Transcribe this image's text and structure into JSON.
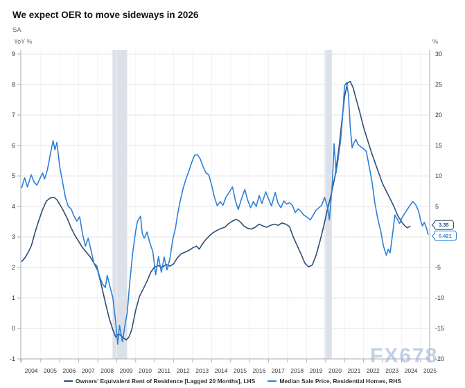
{
  "header": {
    "title": "We expect OER to move sideways in 2026",
    "subtitle": "SA"
  },
  "watermark": {
    "text": "FX678"
  },
  "colors": {
    "grid": "#e6e6e6",
    "vgrid": "#f0f2f5",
    "axis": "#a6adb5",
    "band": "#dce0e9",
    "tick_text": "#333333",
    "muted_text": "#666666",
    "title_text": "#111111",
    "oer_line": "#2d4d76",
    "median_sale_price_line": "#2e7fd8"
  },
  "chart_data": {
    "type": "line",
    "title": "We expect OER to move sideways in 2026",
    "subtitle": "SA",
    "legend_position": "bottom",
    "grid": {
      "horizontal": true,
      "vertical": "faint"
    },
    "left_axis": {
      "unit_label": "YoY %",
      "min": -1,
      "max": 9,
      "ticks": [
        9,
        8,
        7,
        6,
        5,
        4,
        3,
        2,
        1,
        0,
        -1
      ]
    },
    "right_axis": {
      "unit_label": "%",
      "min": -20,
      "max": 30,
      "ticks": [
        30,
        25,
        20,
        15,
        10,
        5,
        -5,
        -10,
        -15,
        -20
      ]
    },
    "x_axis": {
      "tick_years": [
        2004,
        2005,
        2006,
        2007,
        2008,
        2009,
        2010,
        2011,
        2012,
        2013,
        2014,
        2015,
        2016,
        2017,
        2018,
        2019,
        2020,
        2021,
        2022,
        2023,
        2024,
        2025
      ],
      "start": 2003.95,
      "end": 2025.48
    },
    "recession_bands": [
      {
        "from": 2008.78,
        "to": 2009.55
      },
      {
        "from": 2019.95,
        "to": 2020.33
      }
    ],
    "series": [
      {
        "name": "Owners' Equivalent Rent of Residence [Lagged 20 Months], LHS",
        "short_name": "oer",
        "axis": "left",
        "color": "#2d4d76",
        "last_value_label": "3.35",
        "points": [
          [
            2004.0,
            2.2
          ],
          [
            2004.15,
            2.3
          ],
          [
            2004.3,
            2.45
          ],
          [
            2004.5,
            2.7
          ],
          [
            2004.7,
            3.15
          ],
          [
            2004.9,
            3.55
          ],
          [
            2005.1,
            3.9
          ],
          [
            2005.3,
            4.18
          ],
          [
            2005.5,
            4.28
          ],
          [
            2005.7,
            4.3
          ],
          [
            2005.85,
            4.22
          ],
          [
            2006.0,
            4.07
          ],
          [
            2006.2,
            3.85
          ],
          [
            2006.4,
            3.6
          ],
          [
            2006.6,
            3.3
          ],
          [
            2006.8,
            3.05
          ],
          [
            2007.0,
            2.85
          ],
          [
            2007.2,
            2.65
          ],
          [
            2007.4,
            2.5
          ],
          [
            2007.6,
            2.35
          ],
          [
            2007.8,
            2.15
          ],
          [
            2008.0,
            1.9
          ],
          [
            2008.2,
            1.4
          ],
          [
            2008.4,
            0.85
          ],
          [
            2008.6,
            0.35
          ],
          [
            2008.8,
            -0.05
          ],
          [
            2008.95,
            -0.28
          ],
          [
            2009.1,
            -0.18
          ],
          [
            2009.3,
            -0.28
          ],
          [
            2009.5,
            -0.38
          ],
          [
            2009.65,
            -0.28
          ],
          [
            2009.8,
            -0.02
          ],
          [
            2010.0,
            0.6
          ],
          [
            2010.2,
            1.05
          ],
          [
            2010.4,
            1.3
          ],
          [
            2010.6,
            1.55
          ],
          [
            2010.8,
            1.85
          ],
          [
            2011.0,
            2.02
          ],
          [
            2011.2,
            2.06
          ],
          [
            2011.4,
            2.0
          ],
          [
            2011.6,
            2.1
          ],
          [
            2011.8,
            2.04
          ],
          [
            2012.0,
            2.12
          ],
          [
            2012.2,
            2.32
          ],
          [
            2012.4,
            2.45
          ],
          [
            2012.6,
            2.5
          ],
          [
            2012.8,
            2.56
          ],
          [
            2013.0,
            2.64
          ],
          [
            2013.2,
            2.7
          ],
          [
            2013.35,
            2.6
          ],
          [
            2013.5,
            2.76
          ],
          [
            2013.7,
            2.92
          ],
          [
            2013.9,
            3.05
          ],
          [
            2014.1,
            3.15
          ],
          [
            2014.3,
            3.22
          ],
          [
            2014.5,
            3.28
          ],
          [
            2014.7,
            3.32
          ],
          [
            2014.9,
            3.44
          ],
          [
            2015.1,
            3.52
          ],
          [
            2015.3,
            3.58
          ],
          [
            2015.5,
            3.5
          ],
          [
            2015.7,
            3.36
          ],
          [
            2015.9,
            3.28
          ],
          [
            2016.1,
            3.26
          ],
          [
            2016.3,
            3.32
          ],
          [
            2016.5,
            3.42
          ],
          [
            2016.7,
            3.36
          ],
          [
            2016.9,
            3.32
          ],
          [
            2017.1,
            3.38
          ],
          [
            2017.3,
            3.42
          ],
          [
            2017.5,
            3.38
          ],
          [
            2017.7,
            3.46
          ],
          [
            2017.9,
            3.42
          ],
          [
            2018.1,
            3.34
          ],
          [
            2018.3,
            3.0
          ],
          [
            2018.5,
            2.72
          ],
          [
            2018.7,
            2.45
          ],
          [
            2018.9,
            2.15
          ],
          [
            2019.1,
            2.02
          ],
          [
            2019.3,
            2.08
          ],
          [
            2019.5,
            2.4
          ],
          [
            2019.7,
            2.85
          ],
          [
            2019.9,
            3.35
          ],
          [
            2020.1,
            3.9
          ],
          [
            2020.3,
            4.4
          ],
          [
            2020.5,
            5.0
          ],
          [
            2020.7,
            5.9
          ],
          [
            2020.85,
            6.75
          ],
          [
            2021.0,
            7.6
          ],
          [
            2021.15,
            8.05
          ],
          [
            2021.3,
            8.1
          ],
          [
            2021.45,
            7.9
          ],
          [
            2021.6,
            7.55
          ],
          [
            2021.8,
            7.1
          ],
          [
            2022.0,
            6.6
          ],
          [
            2022.2,
            6.2
          ],
          [
            2022.4,
            5.8
          ],
          [
            2022.6,
            5.45
          ],
          [
            2022.8,
            5.1
          ],
          [
            2023.0,
            4.75
          ],
          [
            2023.2,
            4.5
          ],
          [
            2023.4,
            4.25
          ],
          [
            2023.6,
            4.0
          ],
          [
            2023.8,
            3.7
          ],
          [
            2024.0,
            3.5
          ],
          [
            2024.15,
            3.38
          ],
          [
            2024.3,
            3.3
          ],
          [
            2024.45,
            3.35
          ]
        ]
      },
      {
        "name": "Median Sale Price, Residential Homes, RHS",
        "short_name": "median-sale-price",
        "axis": "right",
        "color": "#2e7fd8",
        "last_value_label": "0.421",
        "points": [
          [
            2004.0,
            8.1
          ],
          [
            2004.15,
            9.7
          ],
          [
            2004.3,
            8.2
          ],
          [
            2004.5,
            10.2
          ],
          [
            2004.65,
            9.0
          ],
          [
            2004.8,
            8.5
          ],
          [
            2005.0,
            9.9
          ],
          [
            2005.1,
            10.5
          ],
          [
            2005.2,
            9.5
          ],
          [
            2005.35,
            11.0
          ],
          [
            2005.5,
            13.5
          ],
          [
            2005.65,
            15.8
          ],
          [
            2005.75,
            14.3
          ],
          [
            2005.85,
            15.5
          ],
          [
            2006.0,
            11.5
          ],
          [
            2006.15,
            9.0
          ],
          [
            2006.3,
            6.5
          ],
          [
            2006.45,
            5.0
          ],
          [
            2006.6,
            4.6
          ],
          [
            2006.75,
            3.4
          ],
          [
            2006.9,
            2.6
          ],
          [
            2007.05,
            3.3
          ],
          [
            2007.2,
            0.5
          ],
          [
            2007.35,
            -1.5
          ],
          [
            2007.5,
            -0.2
          ],
          [
            2007.65,
            -2.2
          ],
          [
            2007.8,
            -4.3
          ],
          [
            2007.95,
            -4.7
          ],
          [
            2008.1,
            -6.5
          ],
          [
            2008.25,
            -7.7
          ],
          [
            2008.4,
            -8.3
          ],
          [
            2008.5,
            -6.3
          ],
          [
            2008.65,
            -8.2
          ],
          [
            2008.8,
            -10.0
          ],
          [
            2008.95,
            -14.0
          ],
          [
            2009.05,
            -17.6
          ],
          [
            2009.15,
            -14.5
          ],
          [
            2009.3,
            -17.2
          ],
          [
            2009.45,
            -14.2
          ],
          [
            2009.55,
            -12.5
          ],
          [
            2009.7,
            -7.0
          ],
          [
            2009.85,
            -2.4
          ],
          [
            2010.0,
            1.0
          ],
          [
            2010.1,
            2.6
          ],
          [
            2010.25,
            3.4
          ],
          [
            2010.35,
            0.5
          ],
          [
            2010.45,
            -0.2
          ],
          [
            2010.6,
            0.8
          ],
          [
            2010.75,
            -1.0
          ],
          [
            2010.9,
            -2.4
          ],
          [
            2011.05,
            -6.2
          ],
          [
            2011.2,
            -3.2
          ],
          [
            2011.35,
            -5.8
          ],
          [
            2011.5,
            -3.3
          ],
          [
            2011.65,
            -5.4
          ],
          [
            2011.8,
            -3.6
          ],
          [
            2011.95,
            -0.5
          ],
          [
            2012.1,
            1.5
          ],
          [
            2012.2,
            3.6
          ],
          [
            2012.35,
            6.0
          ],
          [
            2012.5,
            8.0
          ],
          [
            2012.65,
            9.5
          ],
          [
            2012.8,
            10.8
          ],
          [
            2012.95,
            12.2
          ],
          [
            2013.1,
            13.4
          ],
          [
            2013.25,
            13.5
          ],
          [
            2013.4,
            12.8
          ],
          [
            2013.55,
            11.5
          ],
          [
            2013.7,
            10.5
          ],
          [
            2013.85,
            10.2
          ],
          [
            2014.0,
            8.5
          ],
          [
            2014.15,
            6.5
          ],
          [
            2014.3,
            5.1
          ],
          [
            2014.45,
            5.8
          ],
          [
            2014.6,
            5.2
          ],
          [
            2014.75,
            6.5
          ],
          [
            2014.9,
            7.2
          ],
          [
            2015.1,
            8.2
          ],
          [
            2015.25,
            6.0
          ],
          [
            2015.4,
            4.5
          ],
          [
            2015.6,
            6.5
          ],
          [
            2015.75,
            7.8
          ],
          [
            2015.9,
            6.0
          ],
          [
            2016.05,
            4.8
          ],
          [
            2016.2,
            5.8
          ],
          [
            2016.35,
            5.0
          ],
          [
            2016.5,
            6.8
          ],
          [
            2016.65,
            5.5
          ],
          [
            2016.85,
            7.4
          ],
          [
            2017.0,
            6.2
          ],
          [
            2017.15,
            5.1
          ],
          [
            2017.35,
            7.3
          ],
          [
            2017.5,
            5.5
          ],
          [
            2017.65,
            4.8
          ],
          [
            2017.8,
            5.9
          ],
          [
            2017.95,
            5.4
          ],
          [
            2018.1,
            5.6
          ],
          [
            2018.25,
            5.2
          ],
          [
            2018.4,
            4.0
          ],
          [
            2018.55,
            4.6
          ],
          [
            2018.7,
            4.2
          ],
          [
            2018.85,
            3.6
          ],
          [
            2019.0,
            3.3
          ],
          [
            2019.2,
            2.8
          ],
          [
            2019.35,
            3.6
          ],
          [
            2019.5,
            4.4
          ],
          [
            2019.65,
            4.8
          ],
          [
            2019.8,
            5.2
          ],
          [
            2019.95,
            6.5
          ],
          [
            2020.1,
            5.0
          ],
          [
            2020.2,
            2.8
          ],
          [
            2020.35,
            8.5
          ],
          [
            2020.45,
            15.3
          ],
          [
            2020.55,
            10.5
          ],
          [
            2020.65,
            12.5
          ],
          [
            2020.8,
            16.0
          ],
          [
            2020.9,
            20.0
          ],
          [
            2021.0,
            24.8
          ],
          [
            2021.1,
            25.3
          ],
          [
            2021.2,
            23.5
          ],
          [
            2021.3,
            18.0
          ],
          [
            2021.4,
            14.6
          ],
          [
            2021.5,
            15.5
          ],
          [
            2021.6,
            16.0
          ],
          [
            2021.7,
            15.2
          ],
          [
            2021.85,
            14.8
          ],
          [
            2022.0,
            14.5
          ],
          [
            2022.15,
            14.0
          ],
          [
            2022.3,
            11.5
          ],
          [
            2022.45,
            9.0
          ],
          [
            2022.6,
            5.5
          ],
          [
            2022.75,
            3.0
          ],
          [
            2022.9,
            1.0
          ],
          [
            2023.05,
            -1.5
          ],
          [
            2023.2,
            -3.0
          ],
          [
            2023.3,
            -2.0
          ],
          [
            2023.4,
            -2.6
          ],
          [
            2023.55,
            1.0
          ],
          [
            2023.65,
            3.6
          ],
          [
            2023.8,
            2.8
          ],
          [
            2023.9,
            2.2
          ],
          [
            2024.0,
            3.0
          ],
          [
            2024.15,
            3.8
          ],
          [
            2024.3,
            4.5
          ],
          [
            2024.45,
            5.2
          ],
          [
            2024.6,
            5.8
          ],
          [
            2024.75,
            5.3
          ],
          [
            2024.9,
            4.2
          ],
          [
            2025.0,
            2.8
          ],
          [
            2025.1,
            1.8
          ],
          [
            2025.2,
            2.4
          ],
          [
            2025.3,
            1.6
          ],
          [
            2025.4,
            0.421
          ]
        ]
      }
    ]
  }
}
